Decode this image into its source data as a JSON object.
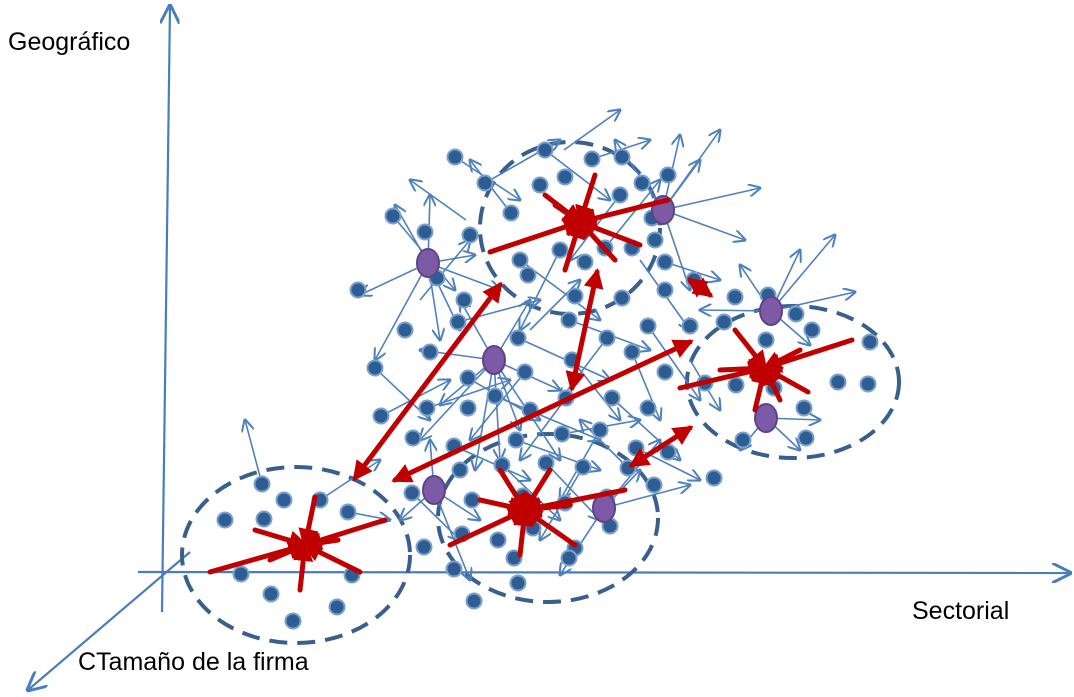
{
  "labels": {
    "y_axis": "Geográfico",
    "x_axis": "Sectorial",
    "z_axis": "CTamaño de la firma"
  },
  "colors": {
    "axis": "#4a7ebb",
    "node_fill": "#2e5d94",
    "node_stroke": "#7aa0cc",
    "hub_fill": "#7d5aa6",
    "hub_stroke": "#5b4487",
    "cluster_border": "#3a5f8c",
    "red_arrow": "#c00000",
    "blue_arrow": "#4f81bd"
  },
  "clusters": [
    {
      "id": "cluster-top-center"
    },
    {
      "id": "cluster-right"
    },
    {
      "id": "cluster-bottom-left"
    },
    {
      "id": "cluster-bottom-center"
    }
  ]
}
